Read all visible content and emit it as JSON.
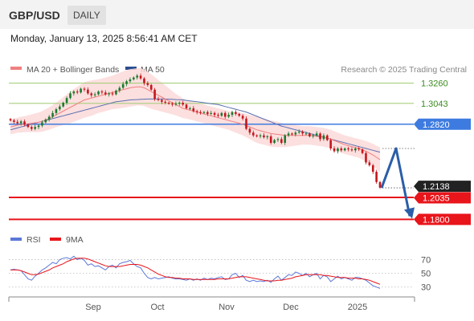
{
  "header": {
    "pair": "GBP/USD",
    "timeframe": "DAILY"
  },
  "datetime": "Monday, January 13, 2025 8:56:41 AM CET",
  "legend": {
    "bollinger": "MA 20 + Bollinger Bands",
    "ma50": "MA 50",
    "credit": "Research © 2025 Trading Central",
    "rsi": "RSI",
    "rsi_ma": "9MA"
  },
  "colors": {
    "up": "#1a7a2e",
    "down": "#c4161c",
    "ma20": "#f07f7f",
    "band": "#fbd9d9",
    "ma50": "#5b6fb0",
    "green_level": "#a8cf7e",
    "blue_level": "#3d7be0",
    "red_level": "#e8151b",
    "arrow": "#2a5ea8",
    "rsi": "#5b78d8",
    "rsi_ma": "#e8151b"
  },
  "chart_data": [
    {
      "type": "candlestick",
      "series_name": "GBP/USD",
      "x_labels": [
        "Sep",
        "Oct",
        "Nov",
        "Dec",
        "2025"
      ],
      "ylim": [
        1.17,
        1.348
      ],
      "price_labels": {
        "r2": "1.3260",
        "r1": "1.3043",
        "pivot": "1.2820",
        "last": "1.2138",
        "s1": "1.2035",
        "s2": "1.1800"
      },
      "levels": {
        "r2": 1.326,
        "r1": 1.3043,
        "pivot": 1.282,
        "last": 1.2138,
        "s1": 1.2035,
        "s2": 1.18
      },
      "closes": [
        1.286,
        1.2845,
        1.283,
        1.285,
        1.2815,
        1.279,
        1.277,
        1.279,
        1.2805,
        1.284,
        1.287,
        1.29,
        1.294,
        1.298,
        1.301,
        1.305,
        1.31,
        1.315,
        1.317,
        1.316,
        1.32,
        1.319,
        1.315,
        1.313,
        1.314,
        1.317,
        1.316,
        1.314,
        1.315,
        1.314,
        1.318,
        1.321,
        1.325,
        1.328,
        1.33,
        1.332,
        1.334,
        1.331,
        1.326,
        1.324,
        1.319,
        1.309,
        1.308,
        1.306,
        1.305,
        1.304,
        1.303,
        1.304,
        1.305,
        1.303,
        1.299,
        1.299,
        1.296,
        1.295,
        1.294,
        1.295,
        1.293,
        1.294,
        1.292,
        1.291,
        1.294,
        1.29,
        1.292,
        1.295,
        1.293,
        1.291,
        1.288,
        1.277,
        1.273,
        1.27,
        1.269,
        1.27,
        1.268,
        1.269,
        1.262,
        1.265,
        1.266,
        1.262,
        1.27,
        1.272,
        1.271,
        1.273,
        1.274,
        1.272,
        1.272,
        1.269,
        1.27,
        1.272,
        1.266,
        1.27,
        1.265,
        1.256,
        1.253,
        1.256,
        1.254,
        1.256,
        1.255,
        1.254,
        1.256,
        1.255,
        1.251,
        1.241,
        1.238,
        1.231,
        1.22,
        1.214
      ],
      "ma20": [
        1.279,
        1.28,
        1.281,
        1.2815,
        1.282,
        1.2825,
        1.283,
        1.2835,
        1.284,
        1.285,
        1.2865,
        1.288,
        1.29,
        1.292,
        1.294,
        1.296,
        1.298,
        1.3,
        1.302,
        1.304,
        1.306,
        1.308,
        1.309,
        1.31,
        1.311,
        1.312,
        1.313,
        1.314,
        1.315,
        1.316,
        1.317,
        1.318,
        1.319,
        1.32,
        1.321,
        1.3215,
        1.322,
        1.322,
        1.321,
        1.319,
        1.317,
        1.315,
        1.313,
        1.311,
        1.309,
        1.307,
        1.305,
        1.303,
        1.301,
        1.299,
        1.298,
        1.297,
        1.296,
        1.295,
        1.294,
        1.293,
        1.292,
        1.291,
        1.29,
        1.289,
        1.288,
        1.287,
        1.286,
        1.285,
        1.284,
        1.283,
        1.282,
        1.2805,
        1.279,
        1.2775,
        1.276,
        1.275,
        1.274,
        1.273,
        1.272,
        1.2715,
        1.271,
        1.2705,
        1.27,
        1.27,
        1.27,
        1.27,
        1.27,
        1.27,
        1.27,
        1.27,
        1.2695,
        1.269,
        1.2685,
        1.268,
        1.267,
        1.266,
        1.2645,
        1.263,
        1.2615,
        1.26,
        1.259,
        1.258,
        1.257,
        1.256,
        1.2545,
        1.253,
        1.251,
        1.249,
        1.2465,
        1.244
      ],
      "band_width": [
        0.008,
        0.008,
        0.008,
        0.0085,
        0.0085,
        0.009,
        0.0095,
        0.01,
        0.0105,
        0.011,
        0.0115,
        0.012,
        0.0125,
        0.013,
        0.014,
        0.015,
        0.016,
        0.017,
        0.0175,
        0.018,
        0.0185,
        0.019,
        0.019,
        0.019,
        0.0185,
        0.018,
        0.018,
        0.018,
        0.018,
        0.018,
        0.0185,
        0.019,
        0.0195,
        0.02,
        0.02,
        0.02,
        0.02,
        0.02,
        0.0195,
        0.019,
        0.0185,
        0.0175,
        0.0165,
        0.0155,
        0.0145,
        0.0135,
        0.0125,
        0.0115,
        0.011,
        0.0105,
        0.01,
        0.01,
        0.01,
        0.01,
        0.01,
        0.01,
        0.01,
        0.01,
        0.01,
        0.01,
        0.01,
        0.01,
        0.01,
        0.0105,
        0.011,
        0.0115,
        0.012,
        0.0125,
        0.013,
        0.0135,
        0.014,
        0.014,
        0.014,
        0.014,
        0.014,
        0.014,
        0.0135,
        0.013,
        0.0125,
        0.012,
        0.0115,
        0.011,
        0.0105,
        0.01,
        0.01,
        0.01,
        0.01,
        0.01,
        0.01,
        0.01,
        0.01,
        0.01,
        0.01,
        0.01,
        0.01,
        0.01,
        0.01,
        0.01,
        0.01,
        0.01,
        0.0105,
        0.011,
        0.0115,
        0.012,
        0.0125,
        0.013
      ],
      "ma50": [
        1.276,
        1.277,
        1.278,
        1.279,
        1.28,
        1.281,
        1.282,
        1.283,
        1.284,
        1.285,
        1.286,
        1.287,
        1.288,
        1.289,
        1.29,
        1.291,
        1.292,
        1.293,
        1.294,
        1.295,
        1.296,
        1.297,
        1.298,
        1.299,
        1.3,
        1.301,
        1.302,
        1.303,
        1.304,
        1.305,
        1.306,
        1.3065,
        1.307,
        1.3075,
        1.308,
        1.3082,
        1.3084,
        1.3086,
        1.3088,
        1.309,
        1.309,
        1.309,
        1.309,
        1.309,
        1.309,
        1.3088,
        1.3086,
        1.3084,
        1.3082,
        1.308,
        1.3075,
        1.307,
        1.3065,
        1.306,
        1.3055,
        1.305,
        1.3045,
        1.304,
        1.3035,
        1.303,
        1.302,
        1.301,
        1.3,
        1.299,
        1.298,
        1.297,
        1.296,
        1.295,
        1.2935,
        1.292,
        1.2905,
        1.289,
        1.2875,
        1.286,
        1.2845,
        1.283,
        1.2815,
        1.28,
        1.279,
        1.278,
        1.277,
        1.276,
        1.275,
        1.274,
        1.273,
        1.272,
        1.271,
        1.27,
        1.269,
        1.268,
        1.267,
        1.266,
        1.265,
        1.264,
        1.263,
        1.262,
        1.261,
        1.26,
        1.259,
        1.258,
        1.257,
        1.256,
        1.255,
        1.254,
        1.253,
        1.252
      ],
      "forecast": {
        "high": 1.256,
        "target": 1.18
      }
    },
    {
      "type": "line",
      "series": [
        "RSI",
        "9MA"
      ],
      "ylim": [
        25,
        80
      ],
      "y_ticks": [
        "70",
        "50",
        "30"
      ],
      "rsi": [
        55,
        56,
        55,
        54,
        48,
        42,
        40,
        46,
        50,
        55,
        58,
        62,
        66,
        64,
        70,
        72,
        73,
        71,
        75,
        70,
        72,
        69,
        62,
        64,
        60,
        61,
        58,
        55,
        60,
        62,
        58,
        64,
        66,
        67,
        69,
        64,
        60,
        58,
        50,
        44,
        42,
        44,
        42,
        43,
        44,
        45,
        43,
        42,
        42,
        41,
        40,
        42,
        40,
        42,
        40,
        43,
        41,
        43,
        42,
        44,
        45,
        41,
        42,
        48,
        50,
        44,
        47,
        40,
        38,
        40,
        38,
        39,
        38,
        40,
        37,
        42,
        46,
        40,
        44,
        48,
        47,
        52,
        50,
        47,
        50,
        45,
        48,
        50,
        42,
        47,
        45,
        38,
        42,
        46,
        42,
        44,
        42,
        40,
        44,
        44,
        42,
        40,
        36,
        32,
        30,
        28
      ],
      "rsi_ma": [
        55,
        55,
        55,
        54,
        52,
        50,
        48,
        48,
        49,
        51,
        53,
        55,
        58,
        60,
        62,
        64,
        67,
        69,
        71,
        72,
        72,
        72,
        71,
        69,
        67,
        65,
        63,
        61,
        60,
        60,
        60,
        60,
        61,
        62,
        63,
        63,
        63,
        62,
        60,
        58,
        55,
        52,
        49,
        47,
        45,
        44,
        44,
        43,
        43,
        42,
        42,
        42,
        41,
        41,
        41,
        41,
        41,
        41,
        41,
        42,
        42,
        42,
        42,
        43,
        44,
        45,
        45,
        45,
        44,
        43,
        42,
        41,
        40,
        39,
        39,
        39,
        40,
        40,
        41,
        42,
        43,
        45,
        46,
        47,
        48,
        48,
        48,
        48,
        48,
        47,
        47,
        46,
        45,
        44,
        44,
        44,
        43,
        43,
        43,
        42,
        42,
        41,
        40,
        38,
        36,
        34
      ]
    }
  ]
}
